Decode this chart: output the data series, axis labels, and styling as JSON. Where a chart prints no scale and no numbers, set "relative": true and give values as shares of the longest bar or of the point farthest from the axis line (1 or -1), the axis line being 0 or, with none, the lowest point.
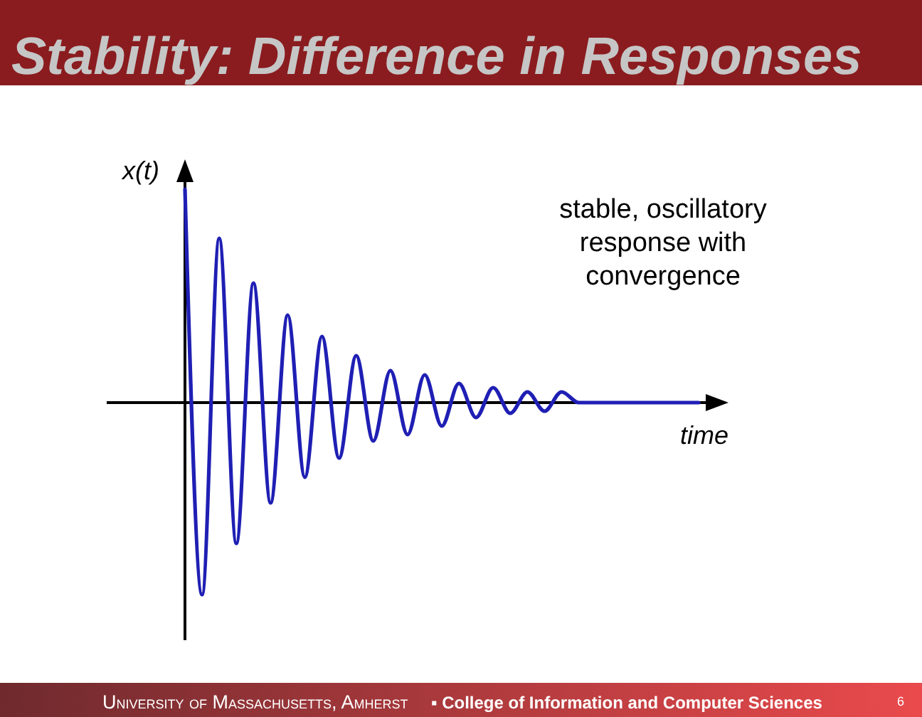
{
  "chart_data": {
    "type": "line",
    "relative": true,
    "title": "Stability: Difference in Responses",
    "xlabel": "time",
    "ylabel": "x(t)",
    "annotations": [
      "stable, oscillatory response with convergence",
      "University of Massachusetts, Amherst",
      "▪ College of Information and Computer Sciences",
      "6"
    ],
    "categories": [
      null,
      null,
      null,
      null,
      null,
      null,
      null,
      null,
      null,
      null,
      null,
      null,
      null,
      null,
      null,
      null,
      null,
      null,
      null,
      null,
      null,
      null,
      null,
      null,
      null,
      null,
      null,
      null,
      null,
      null,
      null
    ],
    "series": [
      {
        "color": "#1f1fb4",
        "values": [
          1,
          -0.9,
          0.77,
          -0.66,
          0.56,
          -0.47,
          0.41,
          -0.35,
          0.31,
          -0.26,
          0.22,
          -0.18,
          0.15,
          -0.15,
          0.13,
          -0.11,
          0.09,
          -0.07,
          0.07,
          -0.05,
          0.05,
          -0.04,
          0.05,
          0,
          0,
          0,
          0,
          0,
          0,
          0,
          0
        ]
      }
    ],
    "line_style": "solid"
  }
}
